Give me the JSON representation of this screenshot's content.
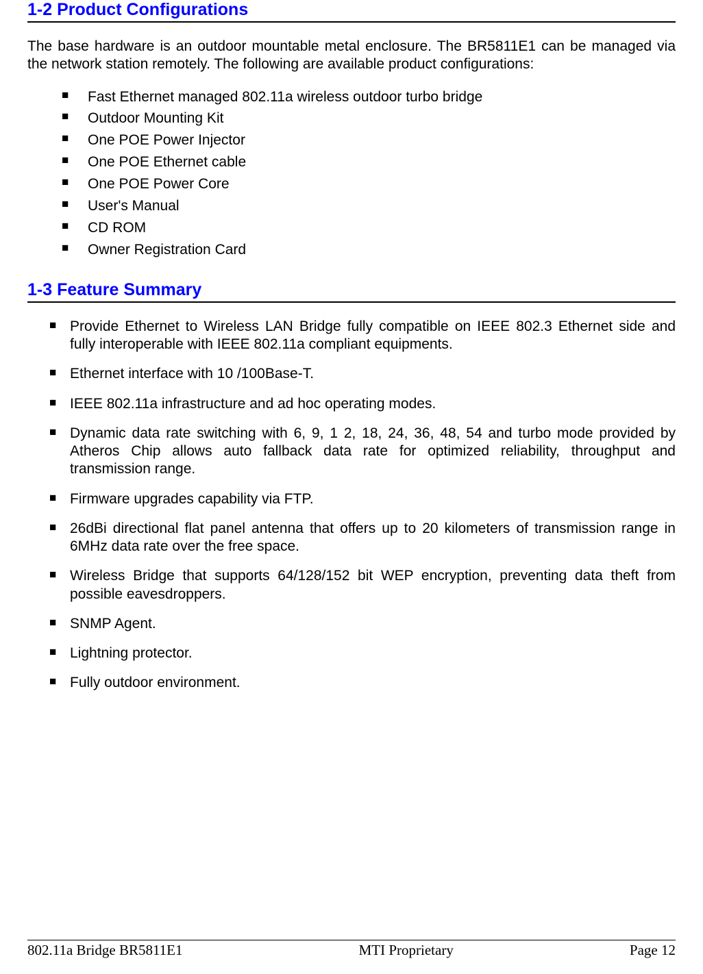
{
  "heading1": "1-2 Product Configurations",
  "intro": "The base hardware is an outdoor mountable metal enclosure. The BR5811E1 can be managed via the network station remotely. The following are available product configurations:",
  "configItems": [
    "Fast Ethernet managed 802.11a wireless outdoor turbo bridge",
    "Outdoor Mounting Kit",
    "One POE Power Injector",
    "One POE Ethernet cable",
    "One POE Power Core",
    "User's Manual",
    "CD ROM",
    "Owner Registration Card"
  ],
  "heading2": "1-3 Feature Summary",
  "featureItems": [
    "Provide Ethernet to Wireless LAN Bridge fully compatible on IEEE 802.3 Ethernet side and fully interoperable with IEEE 802.11a compliant equipments.",
    "Ethernet interface with 10 /100Base-T.",
    "IEEE 802.11a infrastructure and ad hoc operating modes.",
    "Dynamic data rate switching with 6, 9, 1 2, 18, 24, 36, 48, 54 and turbo mode provided by Atheros Chip allows auto fallback data rate for optimized reliability, throughput and transmission range.",
    "Firmware upgrades capability via FTP.",
    "26dBi directional flat panel antenna that offers up to 20 kilometers of transmission range in 6MHz data rate over the free space.",
    "Wireless Bridge that supports 64/128/152 bit WEP encryption, preventing data theft from possible eavesdroppers.",
    "SNMP Agent.",
    "Lightning protector.",
    "Fully outdoor environment."
  ],
  "footer": {
    "left": "802.11a Bridge BR5811E1",
    "center": "MTI Proprietary",
    "right": "Page 12"
  },
  "colors": {
    "headingColor": "#0000ff",
    "textColor": "#000000",
    "ruleColor": "#000000",
    "background": "#ffffff"
  },
  "typography": {
    "bodyFont": "Arial",
    "bodyFontSize": 21,
    "headingFontSize": 25,
    "footerFont": "Times New Roman",
    "footerFontSize": 21
  }
}
